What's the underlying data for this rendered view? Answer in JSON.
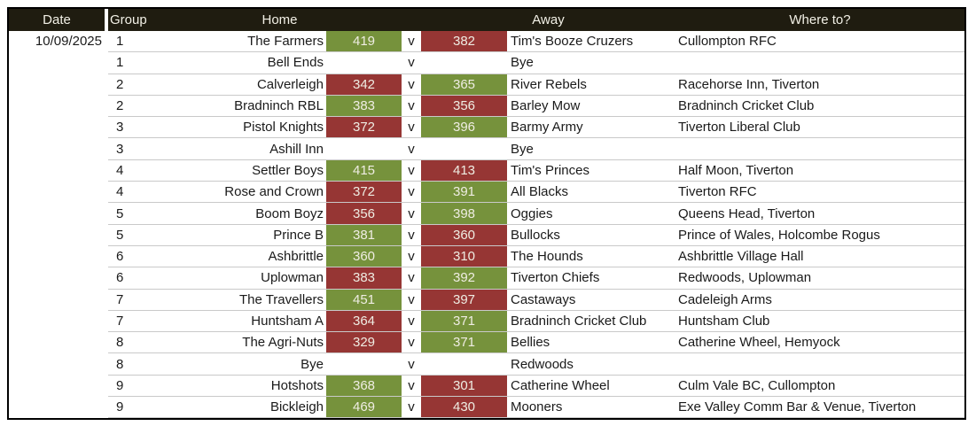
{
  "table": {
    "headers": {
      "date": "Date",
      "group": "Group",
      "home": "Home",
      "away": "Away",
      "where": "Where to?"
    },
    "versus_label": "v",
    "colors": {
      "win_bg": "#76923C",
      "loss_bg": "#963634",
      "header_bg": "#1F1C10",
      "row_line": "#C9C9C9",
      "score_text": "#EFEDE3"
    },
    "rows": [
      {
        "date": "10/09/2025",
        "group": "1",
        "home": "The Farmers",
        "home_score": "419",
        "home_result": "win",
        "away_score": "382",
        "away_result": "loss",
        "away": "Tim's Booze Cruzers",
        "where": "Cullompton RFC"
      },
      {
        "group": "1",
        "home": "Bell Ends",
        "home_score": "",
        "away_score": "",
        "away": "Bye",
        "where": ""
      },
      {
        "group": "2",
        "home": "Calverleigh",
        "home_score": "342",
        "home_result": "loss",
        "away_score": "365",
        "away_result": "win",
        "away": "River Rebels",
        "where": "Racehorse Inn, Tiverton"
      },
      {
        "group": "2",
        "home": "Bradninch RBL",
        "home_score": "383",
        "home_result": "win",
        "away_score": "356",
        "away_result": "loss",
        "away": "Barley Mow",
        "where": "Bradninch Cricket Club"
      },
      {
        "group": "3",
        "home": "Pistol Knights",
        "home_score": "372",
        "home_result": "loss",
        "away_score": "396",
        "away_result": "win",
        "away": "Barmy Army",
        "where": "Tiverton Liberal Club"
      },
      {
        "group": "3",
        "home": "Ashill Inn",
        "home_score": "",
        "away_score": "",
        "away": "Bye",
        "where": ""
      },
      {
        "group": "4",
        "home": "Settler Boys",
        "home_score": "415",
        "home_result": "win",
        "away_score": "413",
        "away_result": "loss",
        "away": "Tim's Princes",
        "where": "Half Moon, Tiverton"
      },
      {
        "group": "4",
        "home": "Rose and Crown",
        "home_score": "372",
        "home_result": "loss",
        "away_score": "391",
        "away_result": "win",
        "away": "All Blacks",
        "where": "Tiverton RFC"
      },
      {
        "group": "5",
        "home": "Boom Boyz",
        "home_score": "356",
        "home_result": "loss",
        "away_score": "398",
        "away_result": "win",
        "away": "Oggies",
        "where": "Queens Head, Tiverton"
      },
      {
        "group": "5",
        "home": "Prince B",
        "home_score": "381",
        "home_result": "win",
        "away_score": "360",
        "away_result": "loss",
        "away": "Bullocks",
        "where": "Prince of Wales, Holcombe Rogus"
      },
      {
        "group": "6",
        "home": "Ashbrittle",
        "home_score": "360",
        "home_result": "win",
        "away_score": "310",
        "away_result": "loss",
        "away": "The Hounds",
        "where": "Ashbrittle Village Hall"
      },
      {
        "group": "6",
        "home": "Uplowman",
        "home_score": "383",
        "home_result": "loss",
        "away_score": "392",
        "away_result": "win",
        "away": "Tiverton Chiefs",
        "where": "Redwoods, Uplowman"
      },
      {
        "group": "7",
        "home": "The Travellers",
        "home_score": "451",
        "home_result": "win",
        "away_score": "397",
        "away_result": "loss",
        "away": "Castaways",
        "where": "Cadeleigh Arms"
      },
      {
        "group": "7",
        "home": "Huntsham A",
        "home_score": "364",
        "home_result": "loss",
        "away_score": "371",
        "away_result": "win",
        "away": "Bradninch Cricket Club",
        "where": "Huntsham Club"
      },
      {
        "group": "8",
        "home": "The Agri-Nuts",
        "home_score": "329",
        "home_result": "loss",
        "away_score": "371",
        "away_result": "win",
        "away": "Bellies",
        "where": "Catherine Wheel, Hemyock"
      },
      {
        "group": "8",
        "home": "Bye",
        "home_score": "",
        "away_score": "",
        "away": "Redwoods",
        "where": ""
      },
      {
        "group": "9",
        "home": "Hotshots",
        "home_score": "368",
        "home_result": "win",
        "away_score": "301",
        "away_result": "loss",
        "away": "Catherine Wheel",
        "where": "Culm Vale BC, Cullompton"
      },
      {
        "group": "9",
        "home": "Bickleigh",
        "home_score": "469",
        "home_result": "win",
        "away_score": "430",
        "away_result": "loss",
        "away": "Mooners",
        "where": "Exe Valley Comm Bar & Venue, Tiverton"
      }
    ]
  }
}
